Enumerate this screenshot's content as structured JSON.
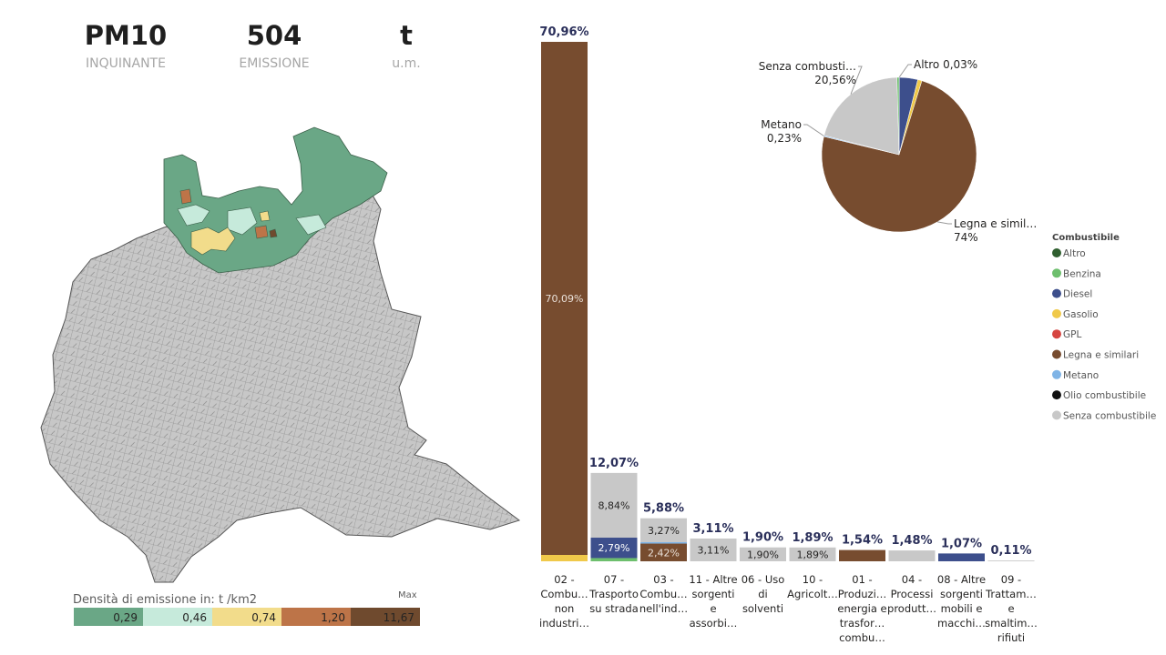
{
  "kpis": [
    {
      "value": "PM10",
      "label": "INQUINANTE"
    },
    {
      "value": "504",
      "label": "EMISSIONE"
    },
    {
      "value": "t",
      "label": "u.m."
    }
  ],
  "map_legend": {
    "title": "Densità di emissione in:  t /km2",
    "max_label": "Max",
    "bins": [
      {
        "value": "0,29",
        "color": "#6aa786"
      },
      {
        "value": "0,46",
        "color": "#c6eadb"
      },
      {
        "value": "0,74",
        "color": "#f2dc8b"
      },
      {
        "value": "1,20",
        "color": "#bd7448"
      },
      {
        "value": "11,67",
        "color": "#6f4a2e"
      }
    ]
  },
  "chart_data": [
    {
      "type": "bar",
      "stacked": true,
      "ylim": [
        0,
        72
      ],
      "categories": [
        {
          "lines": [
            "02 -",
            "Combu…",
            "non",
            "industri…"
          ],
          "total": 70.96,
          "total_label": "70,96%",
          "segments": [
            {
              "fuel": "Gasolio",
              "value": 0.87
            },
            {
              "fuel": "Legna e similari",
              "value": 70.09,
              "label": "70,09%"
            }
          ]
        },
        {
          "lines": [
            "07 -",
            "Trasporto",
            "su strada"
          ],
          "total": 12.07,
          "total_label": "12,07%",
          "segments": [
            {
              "fuel": "Benzina",
              "value": 0.44
            },
            {
              "fuel": "Diesel",
              "value": 2.79,
              "label": "2,79%"
            },
            {
              "fuel": "Senza combustibile",
              "value": 8.84,
              "label": "8,84%"
            }
          ]
        },
        {
          "lines": [
            "03 -",
            "Combu…",
            "nell'ind…"
          ],
          "total": 5.88,
          "total_label": "5,88%",
          "segments": [
            {
              "fuel": "Legna e similari",
              "value": 2.42,
              "label": "2,42%"
            },
            {
              "fuel": "Metano",
              "value": 0.19
            },
            {
              "fuel": "Senza combustibile",
              "value": 3.27,
              "label": "3,27%"
            }
          ]
        },
        {
          "lines": [
            "11 - Altre",
            "sorgenti",
            "e",
            "assorbi…"
          ],
          "total": 3.11,
          "total_label": "3,11%",
          "segments": [
            {
              "fuel": "Senza combustibile",
              "value": 3.11,
              "label": "3,11%"
            }
          ]
        },
        {
          "lines": [
            "06 - Uso",
            "di",
            "solventi"
          ],
          "total": 1.9,
          "total_label": "1,90%",
          "segments": [
            {
              "fuel": "Senza combustibile",
              "value": 1.9,
              "label": "1,90%"
            }
          ]
        },
        {
          "lines": [
            "10 -",
            "Agricolt…"
          ],
          "total": 1.89,
          "total_label": "1,89%",
          "segments": [
            {
              "fuel": "Senza combustibile",
              "value": 1.89,
              "label": "1,89%"
            }
          ]
        },
        {
          "lines": [
            "01 -",
            "Produzi…",
            "energia e",
            "trasfor…",
            "combu…"
          ],
          "total": 1.54,
          "total_label": "1,54%",
          "segments": [
            {
              "fuel": "Legna e similari",
              "value": 1.54
            }
          ]
        },
        {
          "lines": [
            "04 -",
            "Processi",
            "produtt…"
          ],
          "total": 1.48,
          "total_label": "1,48%",
          "segments": [
            {
              "fuel": "Senza combustibile",
              "value": 1.48
            }
          ]
        },
        {
          "lines": [
            "08 - Altre",
            "sorgenti",
            "mobili e",
            "macchi…"
          ],
          "total": 1.07,
          "total_label": "1,07%",
          "segments": [
            {
              "fuel": "Diesel",
              "value": 1.07
            }
          ]
        },
        {
          "lines": [
            "09 -",
            "Trattam…",
            "e",
            "smaltim…",
            "rifiuti"
          ],
          "total": 0.11,
          "total_label": "0,11%",
          "segments": [
            {
              "fuel": "Senza combustibile",
              "value": 0.11
            }
          ]
        }
      ]
    },
    {
      "type": "pie",
      "slices": [
        {
          "fuel": "Altro",
          "value": 0.03,
          "label": [
            "Altro 0,03%"
          ]
        },
        {
          "fuel": "Diesel",
          "value": 3.86
        },
        {
          "fuel": "Gasolio",
          "value": 0.87
        },
        {
          "fuel": "Legna e similari",
          "value": 74.0,
          "label": [
            "Legna e simil…",
            "74%"
          ]
        },
        {
          "fuel": "Metano",
          "value": 0.23,
          "label": [
            "Metano",
            "0,23%"
          ]
        },
        {
          "fuel": "Senza combustibile",
          "value": 20.56,
          "label": [
            "Senza combusti…",
            "20,56%"
          ]
        },
        {
          "fuel": "Benzina",
          "value": 0.44
        }
      ]
    }
  ],
  "fuel_legend": {
    "title": "Combustibile",
    "items": [
      {
        "name": "Altro",
        "color": "#2f5f2f"
      },
      {
        "name": "Benzina",
        "color": "#6dbf6d"
      },
      {
        "name": "Diesel",
        "color": "#3d4f8c"
      },
      {
        "name": "Gasolio",
        "color": "#f0c94a"
      },
      {
        "name": "GPL",
        "color": "#d64541"
      },
      {
        "name": "Legna e similari",
        "color": "#774c2f"
      },
      {
        "name": "Metano",
        "color": "#7fb4e6"
      },
      {
        "name": "Olio combustibile",
        "color": "#111111"
      },
      {
        "name": "Senza combustibile",
        "color": "#c8c8c8"
      }
    ]
  }
}
